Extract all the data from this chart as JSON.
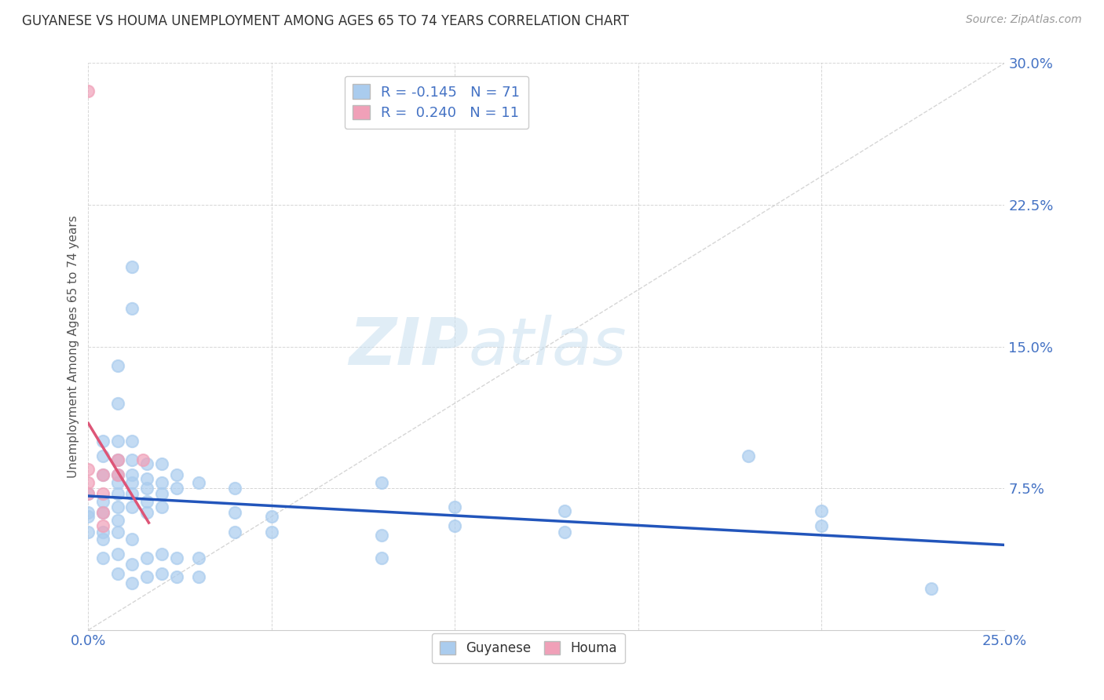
{
  "title": "GUYANESE VS HOUMA UNEMPLOYMENT AMONG AGES 65 TO 74 YEARS CORRELATION CHART",
  "source": "Source: ZipAtlas.com",
  "ylabel": "Unemployment Among Ages 65 to 74 years",
  "xlim": [
    0.0,
    0.25
  ],
  "ylim": [
    0.0,
    0.3
  ],
  "xticks": [
    0.0,
    0.05,
    0.1,
    0.15,
    0.2,
    0.25
  ],
  "yticks": [
    0.0,
    0.075,
    0.15,
    0.225,
    0.3
  ],
  "legend_labels": [
    "Guyanese",
    "Houma"
  ],
  "guyanese_color": "#aaccee",
  "houma_color": "#f0a0b8",
  "guyanese_line_color": "#2255bb",
  "houma_line_color": "#dd5577",
  "diagonal_color": "#cccccc",
  "watermark_zip": "ZIP",
  "watermark_atlas": "atlas",
  "R_guyanese": "-0.145",
  "N_guyanese": 71,
  "R_houma": "0.240",
  "N_houma": 11,
  "guyanese_points": [
    [
      0.0,
      0.052
    ],
    [
      0.0,
      0.062
    ],
    [
      0.0,
      0.072
    ],
    [
      0.0,
      0.06
    ],
    [
      0.004,
      0.068
    ],
    [
      0.004,
      0.082
    ],
    [
      0.004,
      0.092
    ],
    [
      0.004,
      0.1
    ],
    [
      0.004,
      0.062
    ],
    [
      0.004,
      0.052
    ],
    [
      0.004,
      0.048
    ],
    [
      0.004,
      0.038
    ],
    [
      0.008,
      0.14
    ],
    [
      0.008,
      0.12
    ],
    [
      0.008,
      0.1
    ],
    [
      0.008,
      0.09
    ],
    [
      0.008,
      0.082
    ],
    [
      0.008,
      0.078
    ],
    [
      0.008,
      0.072
    ],
    [
      0.008,
      0.065
    ],
    [
      0.008,
      0.058
    ],
    [
      0.008,
      0.052
    ],
    [
      0.008,
      0.04
    ],
    [
      0.008,
      0.03
    ],
    [
      0.012,
      0.192
    ],
    [
      0.012,
      0.17
    ],
    [
      0.012,
      0.1
    ],
    [
      0.012,
      0.09
    ],
    [
      0.012,
      0.082
    ],
    [
      0.012,
      0.078
    ],
    [
      0.012,
      0.072
    ],
    [
      0.012,
      0.065
    ],
    [
      0.012,
      0.048
    ],
    [
      0.012,
      0.035
    ],
    [
      0.012,
      0.025
    ],
    [
      0.016,
      0.088
    ],
    [
      0.016,
      0.08
    ],
    [
      0.016,
      0.075
    ],
    [
      0.016,
      0.068
    ],
    [
      0.016,
      0.062
    ],
    [
      0.016,
      0.038
    ],
    [
      0.016,
      0.028
    ],
    [
      0.02,
      0.088
    ],
    [
      0.02,
      0.078
    ],
    [
      0.02,
      0.072
    ],
    [
      0.02,
      0.065
    ],
    [
      0.02,
      0.04
    ],
    [
      0.02,
      0.03
    ],
    [
      0.024,
      0.082
    ],
    [
      0.024,
      0.075
    ],
    [
      0.024,
      0.038
    ],
    [
      0.024,
      0.028
    ],
    [
      0.03,
      0.078
    ],
    [
      0.03,
      0.038
    ],
    [
      0.03,
      0.028
    ],
    [
      0.04,
      0.075
    ],
    [
      0.04,
      0.062
    ],
    [
      0.04,
      0.052
    ],
    [
      0.05,
      0.06
    ],
    [
      0.05,
      0.052
    ],
    [
      0.08,
      0.078
    ],
    [
      0.08,
      0.05
    ],
    [
      0.08,
      0.038
    ],
    [
      0.1,
      0.065
    ],
    [
      0.1,
      0.055
    ],
    [
      0.13,
      0.063
    ],
    [
      0.13,
      0.052
    ],
    [
      0.18,
      0.092
    ],
    [
      0.2,
      0.063
    ],
    [
      0.2,
      0.055
    ],
    [
      0.23,
      0.022
    ]
  ],
  "houma_points": [
    [
      0.0,
      0.285
    ],
    [
      0.0,
      0.085
    ],
    [
      0.0,
      0.078
    ],
    [
      0.0,
      0.072
    ],
    [
      0.004,
      0.082
    ],
    [
      0.004,
      0.072
    ],
    [
      0.004,
      0.062
    ],
    [
      0.004,
      0.055
    ],
    [
      0.008,
      0.09
    ],
    [
      0.008,
      0.082
    ],
    [
      0.015,
      0.09
    ]
  ]
}
